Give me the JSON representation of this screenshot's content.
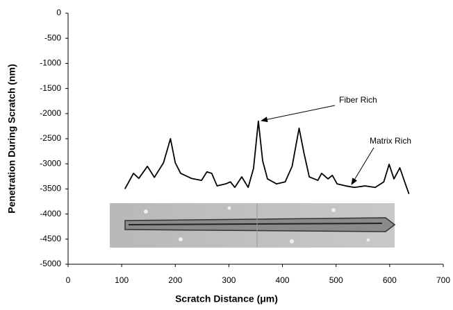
{
  "chart_data": {
    "type": "line",
    "x_label": "Scratch Distance (μm)",
    "y_label": "Penetration During Scratch (nm)",
    "xlim": [
      0,
      700
    ],
    "xticks": [
      0,
      100,
      200,
      300,
      400,
      500,
      600,
      700
    ],
    "ylim": [
      -5000,
      0
    ],
    "yticks": [
      0,
      -500,
      -1000,
      -1500,
      -2000,
      -2500,
      -3000,
      -3500,
      -4000,
      -4500,
      -5000
    ],
    "grid": false,
    "annotations": [
      "Fiber Rich",
      "Matrix Rich"
    ],
    "series": [
      {
        "color": "#000000",
        "x": [
          106,
          122,
          132,
          148,
          161,
          178,
          191,
          200,
          210,
          230,
          249,
          259,
          268,
          278,
          294,
          303,
          311,
          324,
          336,
          346,
          355,
          363,
          372,
          389,
          405,
          418,
          431,
          440,
          450,
          466,
          473,
          485,
          493,
          502,
          518,
          534,
          554,
          573,
          589,
          599,
          608,
          619,
          628,
          636
        ],
        "values": [
          -3500,
          -3190,
          -3290,
          -3050,
          -3270,
          -2980,
          -2500,
          -2980,
          -3190,
          -3290,
          -3330,
          -3160,
          -3190,
          -3440,
          -3400,
          -3360,
          -3470,
          -3260,
          -3470,
          -3090,
          -2150,
          -2940,
          -3300,
          -3400,
          -3360,
          -3050,
          -2290,
          -2780,
          -3260,
          -3330,
          -3190,
          -3300,
          -3230,
          -3400,
          -3440,
          -3470,
          -3440,
          -3470,
          -3360,
          -3010,
          -3300,
          -3080,
          -3360,
          -3600
        ]
      }
    ]
  }
}
